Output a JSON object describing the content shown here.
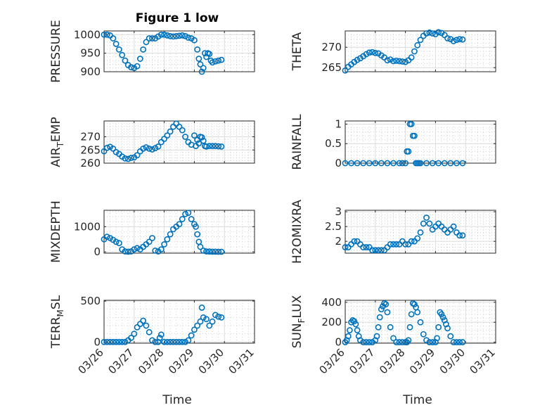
{
  "figure": {
    "title": "Figure 1 low",
    "xlabel": "Time",
    "x_tick_labels": [
      "03/26",
      "03/27",
      "03/28",
      "03/29",
      "03/30",
      "03/31"
    ],
    "marker_color": "#0072BD"
  },
  "chart_data": [
    {
      "type": "scatter",
      "ylabel": "PRESSURE",
      "ylabel_main": "PRESSURE",
      "ylabel_sub": "",
      "ylabel_tail": "",
      "ylim": [
        900,
        1010
      ],
      "yticks": [
        900,
        950,
        1000
      ],
      "x": [
        26.0,
        26.1,
        26.2,
        26.3,
        26.4,
        26.5,
        26.6,
        26.7,
        26.8,
        26.9,
        27.0,
        27.1,
        27.2,
        27.3,
        27.4,
        27.5,
        27.6,
        27.7,
        27.8,
        27.9,
        28.0,
        28.1,
        28.2,
        28.3,
        28.4,
        28.5,
        28.6,
        28.7,
        28.8,
        28.9,
        29.0,
        29.1,
        29.15,
        29.2,
        29.25,
        29.3,
        29.35,
        29.4,
        29.45,
        29.5,
        29.55,
        29.6,
        29.7,
        29.8,
        29.9
      ],
      "y": [
        1000,
        1000,
        998,
        990,
        975,
        960,
        945,
        930,
        918,
        912,
        910,
        915,
        935,
        960,
        980,
        990,
        990,
        990,
        995,
        1000,
        1000,
        998,
        996,
        995,
        996,
        997,
        998,
        996,
        992,
        990,
        985,
        960,
        935,
        920,
        900,
        910,
        950,
        940,
        950,
        948,
        930,
        925,
        928,
        930,
        932
      ]
    },
    {
      "type": "scatter",
      "ylabel": "THETA",
      "ylabel_main": "THETA",
      "ylabel_sub": "",
      "ylabel_tail": "",
      "ylim": [
        264,
        274
      ],
      "yticks": [
        265,
        270
      ],
      "x": [
        26.0,
        26.1,
        26.2,
        26.3,
        26.4,
        26.5,
        26.6,
        26.7,
        26.8,
        26.9,
        27.0,
        27.1,
        27.2,
        27.3,
        27.4,
        27.5,
        27.6,
        27.7,
        27.8,
        27.9,
        28.0,
        28.1,
        28.2,
        28.3,
        28.4,
        28.5,
        28.6,
        28.7,
        28.8,
        28.9,
        29.0,
        29.1,
        29.2,
        29.3,
        29.4,
        29.5,
        29.6,
        29.7,
        29.8,
        29.9
      ],
      "y": [
        264.3,
        265.2,
        265.8,
        266.4,
        266.9,
        267.3,
        267.8,
        268.3,
        268.7,
        268.8,
        268.6,
        268.5,
        268.0,
        267.5,
        266.8,
        267.0,
        266.6,
        266.7,
        266.6,
        266.5,
        266.4,
        266.8,
        267.5,
        269.0,
        270.5,
        271.8,
        272.8,
        273.4,
        273.6,
        273.4,
        273.2,
        273.7,
        273.5,
        273.0,
        272.2,
        272.0,
        271.5,
        271.8,
        272.0,
        271.9
      ]
    },
    {
      "type": "scatter",
      "ylabel": "AIRTEMP",
      "ylabel_main": "AIR",
      "ylabel_sub": "T",
      "ylabel_tail": "EMP",
      "ylim": [
        260,
        276
      ],
      "yticks": [
        260,
        265,
        270
      ],
      "x": [
        26.0,
        26.1,
        26.2,
        26.3,
        26.4,
        26.5,
        26.6,
        26.7,
        26.8,
        26.9,
        27.0,
        27.1,
        27.2,
        27.3,
        27.4,
        27.5,
        27.6,
        27.7,
        27.8,
        27.9,
        28.0,
        28.1,
        28.2,
        28.3,
        28.4,
        28.5,
        28.6,
        28.7,
        28.8,
        28.9,
        29.0,
        29.05,
        29.1,
        29.15,
        29.2,
        29.25,
        29.3,
        29.35,
        29.4,
        29.5,
        29.6,
        29.7,
        29.8,
        29.9
      ],
      "y": [
        264.5,
        265.8,
        266.2,
        265.5,
        264.2,
        263.5,
        262.5,
        261.8,
        261.6,
        262.0,
        262.2,
        263.0,
        264.5,
        265.5,
        266.0,
        265.5,
        265.2,
        265.7,
        266.3,
        268.0,
        269.2,
        270.5,
        272.0,
        273.8,
        275.0,
        273.8,
        272.5,
        270.0,
        268.0,
        267.0,
        270.5,
        266.5,
        268.8,
        267.5,
        270.0,
        269.8,
        268.5,
        266.5,
        266.3,
        266.5,
        266.5,
        266.5,
        266.4,
        266.3
      ]
    },
    {
      "type": "scatter",
      "ylabel": "RAINFALL",
      "ylabel_main": "RAINFALL",
      "ylabel_sub": "",
      "ylabel_tail": "",
      "ylim": [
        0,
        1.08
      ],
      "yticks": [
        0,
        0.5,
        1
      ],
      "x": [
        26.0,
        26.2,
        26.4,
        26.6,
        26.8,
        27.0,
        27.2,
        27.4,
        27.6,
        27.8,
        27.9,
        28.0,
        28.05,
        28.1,
        28.15,
        28.2,
        28.25,
        28.3,
        28.35,
        28.4,
        28.45,
        28.5,
        28.7,
        28.9,
        29.1,
        29.3,
        29.5,
        29.7,
        29.9
      ],
      "y": [
        0,
        0,
        0,
        0,
        0,
        0,
        0,
        0,
        0,
        0,
        0,
        0,
        0.3,
        0.3,
        1.0,
        1.0,
        0.7,
        0.7,
        0,
        0,
        0,
        0,
        0,
        0,
        0,
        0,
        0,
        0,
        0
      ]
    },
    {
      "type": "scatter",
      "ylabel": "MIXDEPTH",
      "ylabel_main": "MIXDEPTH",
      "ylabel_sub": "",
      "ylabel_tail": "",
      "ylim": [
        -50,
        1650
      ],
      "yticks": [
        0,
        1000
      ],
      "x": [
        26.0,
        26.1,
        26.2,
        26.3,
        26.4,
        26.5,
        26.6,
        26.7,
        26.8,
        26.9,
        27.0,
        27.1,
        27.2,
        27.3,
        27.4,
        27.5,
        27.6,
        27.7,
        27.8,
        27.9,
        28.0,
        28.1,
        28.2,
        28.3,
        28.4,
        28.5,
        28.6,
        28.7,
        28.8,
        28.9,
        29.0,
        29.05,
        29.1,
        29.15,
        29.2,
        29.3,
        29.4,
        29.5,
        29.6,
        29.7,
        29.8,
        29.9
      ],
      "y": [
        500,
        600,
        550,
        480,
        400,
        350,
        100,
        20,
        10,
        20,
        100,
        150,
        100,
        200,
        300,
        400,
        550,
        50,
        20,
        100,
        300,
        500,
        700,
        900,
        1000,
        1100,
        1300,
        1500,
        1550,
        1300,
        1100,
        1000,
        700,
        400,
        200,
        50,
        20,
        15,
        10,
        10,
        5,
        5
      ]
    },
    {
      "type": "scatter",
      "ylabel": "H2OMIXRA",
      "ylabel_main": "H2OMIXRA",
      "ylabel_sub": "",
      "ylabel_tail": "",
      "ylim": [
        1.6,
        3.05
      ],
      "yticks": [
        2,
        2.5,
        3
      ],
      "x": [
        26.0,
        26.1,
        26.2,
        26.3,
        26.4,
        26.5,
        26.6,
        26.7,
        26.8,
        26.9,
        27.0,
        27.1,
        27.2,
        27.3,
        27.4,
        27.5,
        27.6,
        27.7,
        27.8,
        27.9,
        28.0,
        28.1,
        28.2,
        28.3,
        28.4,
        28.5,
        28.6,
        28.7,
        28.8,
        28.9,
        29.0,
        29.1,
        29.2,
        29.3,
        29.4,
        29.5,
        29.6,
        29.7,
        29.8,
        29.9
      ],
      "y": [
        1.8,
        1.8,
        1.9,
        2.0,
        2.0,
        1.9,
        1.8,
        1.8,
        1.8,
        1.7,
        1.7,
        1.7,
        1.7,
        1.7,
        1.8,
        1.9,
        1.9,
        1.9,
        1.9,
        2.0,
        1.9,
        1.9,
        2.0,
        2.0,
        2.1,
        2.3,
        2.6,
        2.8,
        2.6,
        2.4,
        2.5,
        2.6,
        2.5,
        2.4,
        2.3,
        2.4,
        2.5,
        2.3,
        2.2,
        2.2
      ]
    },
    {
      "type": "scatter",
      "ylabel": "TERRMSL",
      "ylabel_main": "TERR",
      "ylabel_sub": "M",
      "ylabel_tail": "SL",
      "ylim": [
        -15,
        510
      ],
      "yticks": [
        0,
        500
      ],
      "x": [
        26.0,
        26.1,
        26.2,
        26.3,
        26.4,
        26.5,
        26.6,
        26.7,
        26.8,
        26.9,
        27.0,
        27.1,
        27.2,
        27.3,
        27.4,
        27.5,
        27.6,
        27.7,
        27.8,
        27.85,
        27.9,
        28.0,
        28.1,
        28.2,
        28.3,
        28.4,
        28.5,
        28.6,
        28.7,
        28.8,
        28.9,
        29.0,
        29.1,
        29.2,
        29.25,
        29.3,
        29.4,
        29.5,
        29.6,
        29.7,
        29.8,
        29.9
      ],
      "y": [
        0,
        0,
        0,
        0,
        0,
        0,
        0,
        0,
        20,
        50,
        100,
        180,
        220,
        260,
        200,
        120,
        20,
        0,
        0,
        50,
        90,
        0,
        0,
        0,
        0,
        0,
        0,
        0,
        0,
        20,
        80,
        150,
        200,
        250,
        420,
        300,
        280,
        200,
        250,
        330,
        310,
        300
      ]
    },
    {
      "type": "scatter",
      "ylabel": "SUNFLUX",
      "ylabel_main": "SUN",
      "ylabel_sub": "F",
      "ylabel_tail": "LUX",
      "ylim": [
        -10,
        420
      ],
      "yticks": [
        0,
        200,
        400
      ],
      "x": [
        26.0,
        26.05,
        26.1,
        26.15,
        26.2,
        26.25,
        26.3,
        26.35,
        26.4,
        26.45,
        26.5,
        26.6,
        26.7,
        26.8,
        26.9,
        27.0,
        27.05,
        27.1,
        27.15,
        27.2,
        27.25,
        27.3,
        27.35,
        27.4,
        27.5,
        27.6,
        27.7,
        27.8,
        27.9,
        28.0,
        28.05,
        28.1,
        28.15,
        28.2,
        28.25,
        28.3,
        28.35,
        28.4,
        28.5,
        28.6,
        28.7,
        28.8,
        28.9,
        29.0,
        29.05,
        29.1,
        29.15,
        29.2,
        29.25,
        29.3,
        29.35,
        29.4,
        29.5,
        29.6,
        29.7,
        29.8,
        29.9
      ],
      "y": [
        0,
        20,
        60,
        120,
        200,
        220,
        210,
        180,
        120,
        60,
        20,
        0,
        0,
        0,
        0,
        20,
        60,
        150,
        250,
        330,
        360,
        390,
        380,
        300,
        150,
        40,
        0,
        0,
        0,
        0,
        0,
        20,
        150,
        280,
        390,
        380,
        350,
        300,
        200,
        80,
        20,
        0,
        0,
        0,
        40,
        150,
        300,
        280,
        250,
        220,
        180,
        140,
        60,
        0,
        0,
        0,
        0
      ]
    }
  ]
}
